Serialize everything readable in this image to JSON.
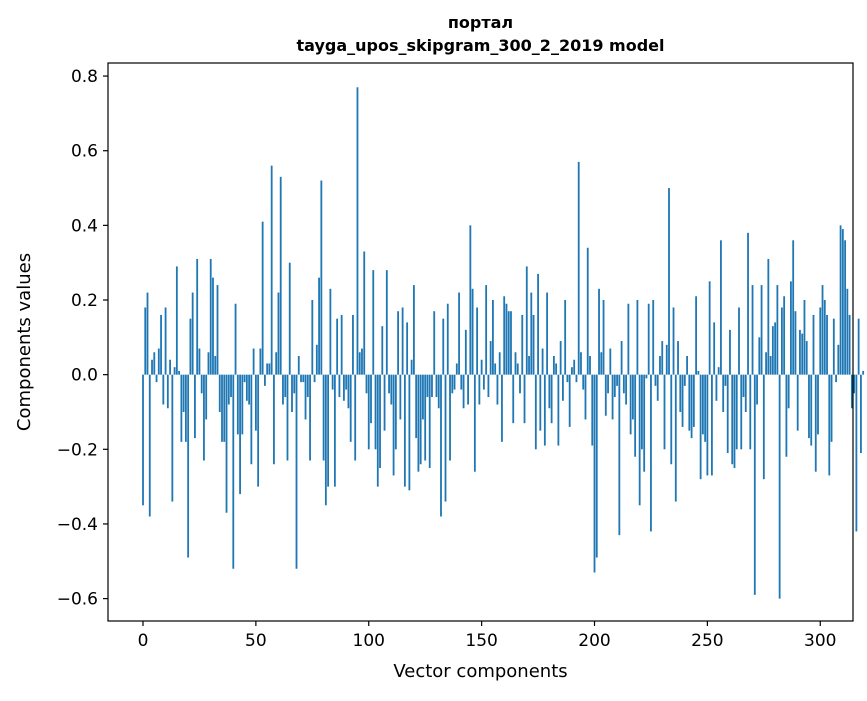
{
  "chart_data": {
    "type": "bar",
    "title": "портал",
    "subtitle": "tayga_upos_skipgram_300_2_2019 model",
    "xlabel": "Vector components",
    "ylabel": "Components values",
    "xlim": [
      -15.5,
      314.5
    ],
    "ylim": [
      -0.66,
      0.835
    ],
    "xticks": [
      0,
      50,
      100,
      150,
      200,
      250,
      300
    ],
    "xtick_labels": [
      "0",
      "50",
      "100",
      "150",
      "200",
      "250",
      "300"
    ],
    "yticks": [
      -0.6,
      -0.4,
      -0.2,
      0.0,
      0.2,
      0.4,
      0.6,
      0.8
    ],
    "ytick_labels": [
      "−0.6",
      "−0.4",
      "−0.2",
      "0.0",
      "0.2",
      "0.4",
      "0.6",
      "0.8"
    ],
    "grid": false,
    "bar_color": "#1f77b4",
    "values": [
      -0.35,
      0.18,
      0.22,
      -0.38,
      0.04,
      0.06,
      -0.02,
      0.07,
      0.16,
      -0.08,
      0.18,
      -0.09,
      0.04,
      -0.34,
      0.02,
      0.29,
      0.01,
      -0.18,
      -0.1,
      -0.18,
      -0.49,
      0.15,
      0.22,
      -0.17,
      0.31,
      0.07,
      -0.05,
      -0.23,
      -0.12,
      0.06,
      0.31,
      0.26,
      0.05,
      0.24,
      -0.1,
      -0.18,
      -0.18,
      -0.37,
      -0.08,
      -0.06,
      -0.52,
      0.19,
      -0.16,
      -0.32,
      -0.16,
      -0.02,
      -0.07,
      -0.08,
      -0.24,
      0.07,
      -0.15,
      -0.3,
      0.07,
      0.41,
      -0.03,
      0.03,
      0.03,
      0.56,
      -0.24,
      0.06,
      0.22,
      0.53,
      -0.08,
      -0.06,
      -0.23,
      0.3,
      -0.1,
      -0.05,
      -0.52,
      0.05,
      -0.02,
      -0.02,
      -0.12,
      -0.06,
      -0.23,
      0.2,
      -0.02,
      0.08,
      0.26,
      0.52,
      -0.23,
      -0.35,
      -0.3,
      0.23,
      -0.04,
      -0.3,
      0.15,
      -0.06,
      0.16,
      -0.07,
      -0.04,
      -0.09,
      -0.18,
      0.16,
      -0.23,
      0.77,
      0.06,
      0.07,
      0.33,
      -0.05,
      -0.2,
      -0.13,
      0.28,
      -0.2,
      -0.3,
      -0.25,
      0.13,
      -0.15,
      0.28,
      -0.05,
      -0.08,
      -0.27,
      -0.2,
      0.17,
      -0.12,
      0.18,
      -0.3,
      0.14,
      -0.31,
      0.04,
      0.24,
      -0.17,
      -0.26,
      -0.24,
      -0.12,
      -0.23,
      -0.06,
      -0.25,
      -0.06,
      0.17,
      -0.06,
      -0.09,
      -0.38,
      0.15,
      -0.34,
      0.19,
      -0.23,
      -0.05,
      -0.04,
      0.03,
      0.22,
      -0.04,
      -0.09,
      0.12,
      -0.08,
      0.4,
      0.23,
      -0.26,
      0.18,
      -0.08,
      0.04,
      -0.04,
      0.24,
      -0.06,
      0.09,
      0.2,
      0.03,
      -0.08,
      0.06,
      -0.18,
      0.21,
      0.19,
      0.17,
      0.17,
      -0.13,
      0.06,
      0.03,
      -0.05,
      0.16,
      -0.13,
      0.29,
      0.05,
      0.22,
      0.16,
      -0.2,
      0.27,
      -0.15,
      0.07,
      -0.19,
      0.22,
      -0.09,
      -0.13,
      0.05,
      0.03,
      -0.19,
      0.09,
      -0.07,
      0.2,
      -0.02,
      -0.14,
      0.02,
      0.04,
      -0.02,
      0.57,
      0.06,
      -0.04,
      -0.12,
      0.34,
      0.05,
      -0.19,
      -0.53,
      -0.49,
      0.23,
      0.06,
      0.2,
      -0.11,
      -0.05,
      0.07,
      -0.12,
      -0.06,
      -0.03,
      -0.43,
      0.09,
      -0.05,
      -0.08,
      0.19,
      -0.16,
      -0.12,
      -0.22,
      0.2,
      -0.35,
      -0.2,
      -0.26,
      -0.01,
      0.19,
      -0.42,
      0.2,
      -0.03,
      -0.07,
      0.05,
      0.09,
      -0.2,
      0.08,
      0.5,
      -0.24,
      0.18,
      -0.34,
      0.09,
      -0.1,
      -0.14,
      -0.03,
      0.05,
      -0.15,
      -0.17,
      -0.14,
      0.21,
      0.01,
      -0.28,
      -0.16,
      -0.18,
      -0.27,
      0.25,
      -0.27,
      0.14,
      -0.07,
      0.02,
      0.36,
      -0.1,
      -0.03,
      -0.21,
      0.12,
      -0.24,
      -0.25,
      -0.2,
      0.18,
      -0.2,
      -0.06,
      -0.1,
      0.38,
      -0.2,
      0.24,
      -0.59,
      -0.08,
      0.1,
      0.24,
      -0.28,
      0.06,
      0.31,
      0.05,
      0.13,
      0.14,
      0.24,
      -0.6,
      0.18,
      0.21,
      -0.22,
      -0.09,
      0.25,
      0.36,
      0.17,
      -0.15,
      0.12,
      0.11,
      0.2,
      0.09,
      -0.17,
      -0.19,
      0.16,
      -0.26,
      -0.16,
      0.18,
      0.24,
      0.2,
      0.16,
      -0.27,
      -0.18,
      0.15,
      -0.02,
      0.08,
      0.4,
      0.39,
      0.36,
      0.23,
      0.16,
      -0.09,
      -0.05,
      -0.42,
      0.15,
      -0.21,
      0.01
    ]
  }
}
